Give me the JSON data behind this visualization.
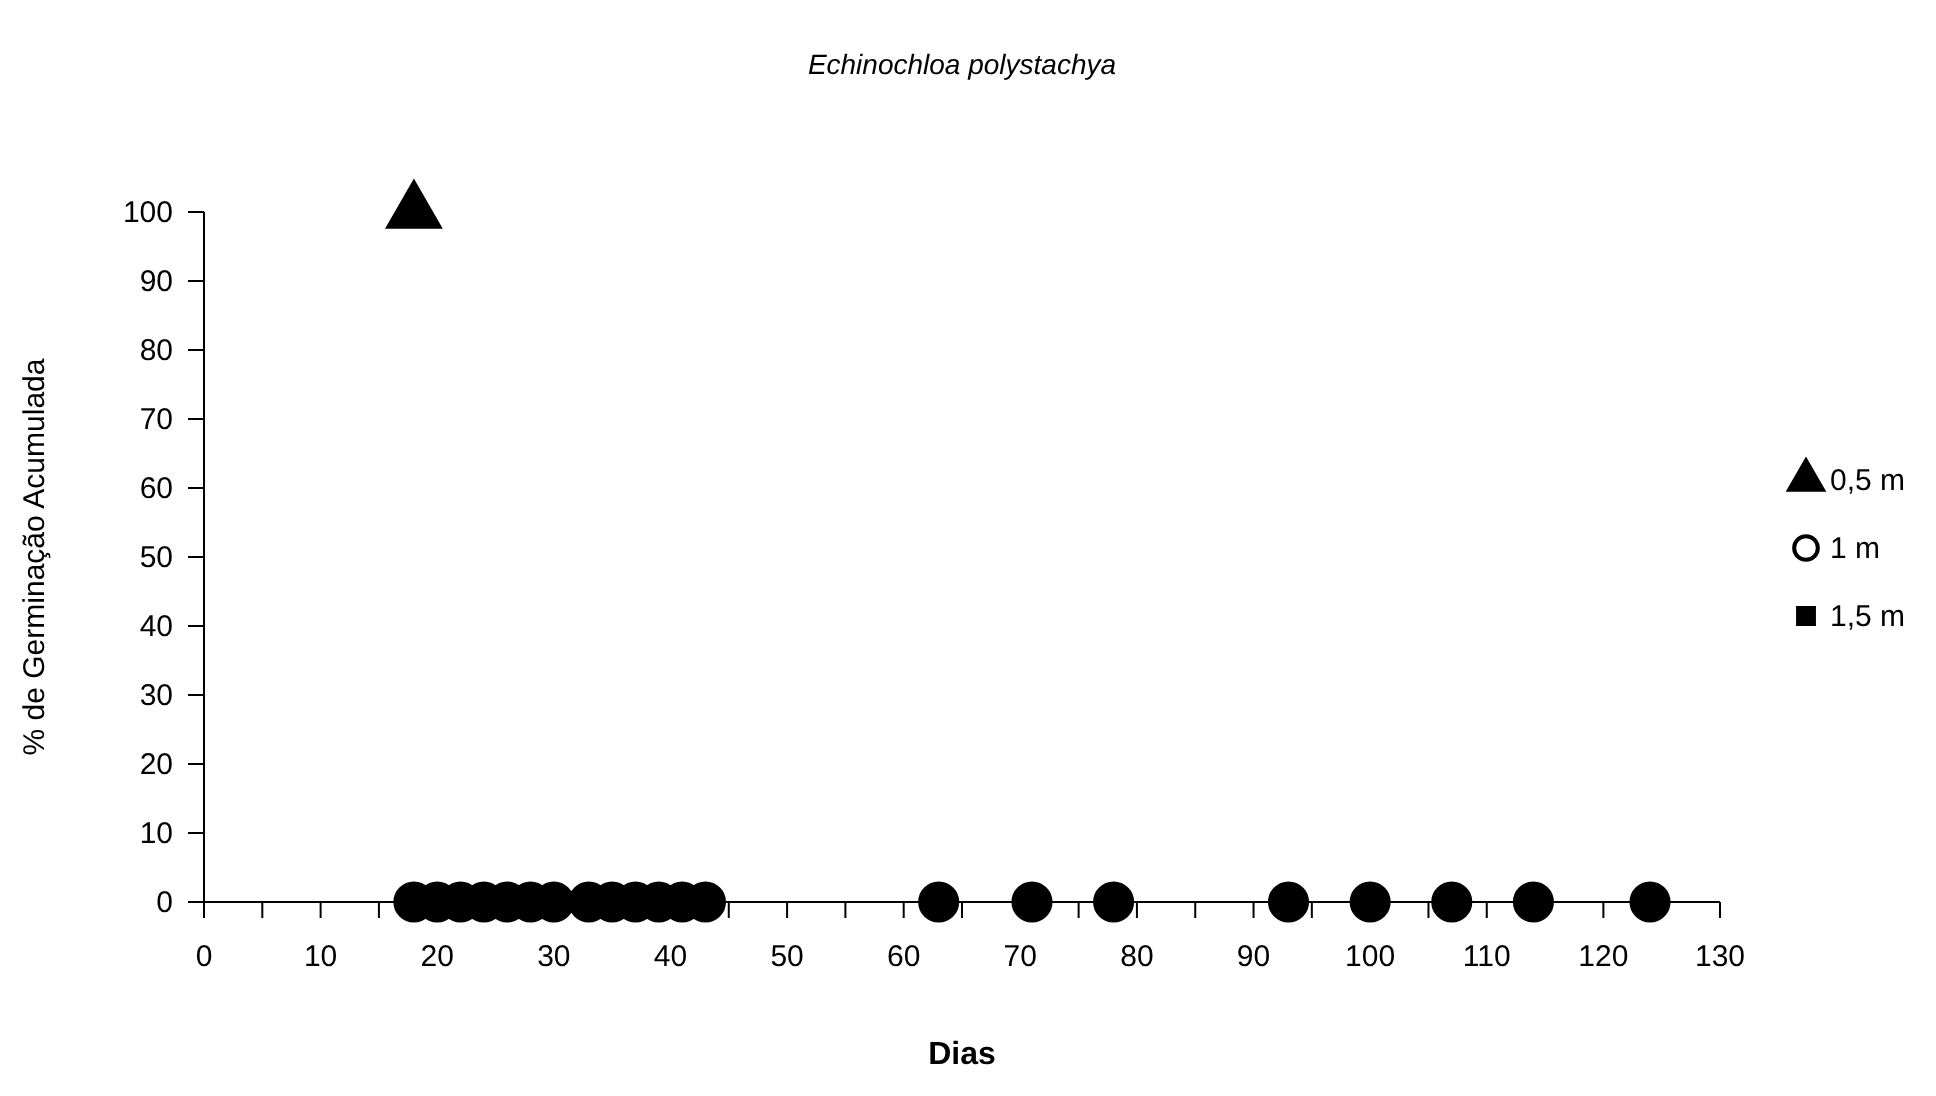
{
  "chart_data": {
    "type": "scatter",
    "title": "Echinochloa polystachya",
    "xlabel": "Dias",
    "ylabel": "% de Germinação Acumulada",
    "xlim": [
      0,
      130
    ],
    "ylim": [
      0,
      100
    ],
    "xticks": [
      0,
      {
        "value": 5,
        "label": null
      },
      10,
      {
        "value": 15,
        "label": null
      },
      20,
      {
        "value": 25,
        "label": null
      },
      30,
      {
        "value": 35,
        "label": null
      },
      40,
      {
        "value": 45,
        "label": null
      },
      50,
      {
        "value": 55,
        "label": null
      },
      60,
      {
        "value": 65,
        "label": null
      },
      70,
      {
        "value": 75,
        "label": null
      },
      80,
      {
        "value": 85,
        "label": null
      },
      90,
      {
        "value": 95,
        "label": null
      },
      100,
      {
        "value": 105,
        "label": null
      },
      110,
      {
        "value": 115,
        "label": null
      },
      120,
      {
        "value": 125,
        "label": null
      },
      130
    ],
    "yticks": [
      0,
      10,
      20,
      30,
      40,
      50,
      60,
      70,
      80,
      90,
      100
    ],
    "grid": false,
    "legend": "right",
    "series": [
      {
        "name": "0,5 m",
        "color": "#000000",
        "marker": "triangle",
        "x": [
          18
        ],
        "values": [
          100
        ]
      },
      {
        "color": "#000000",
        "marker": "circle",
        "x": [
          18,
          20,
          22,
          24,
          26,
          28,
          30,
          33,
          35,
          37,
          39,
          41,
          43,
          63,
          71,
          78,
          93,
          100,
          107,
          114,
          124
        ],
        "values": [
          0,
          0,
          0,
          0,
          0,
          0,
          0,
          0,
          0,
          0,
          0,
          0,
          0,
          0,
          0,
          0,
          0,
          0,
          0,
          0,
          0
        ]
      },
      {
        "name": "1 m",
        "color": "#000000",
        "marker": "circle"
      },
      {
        "name": "1,5 m",
        "color": "#000000",
        "marker": "square"
      }
    ]
  }
}
